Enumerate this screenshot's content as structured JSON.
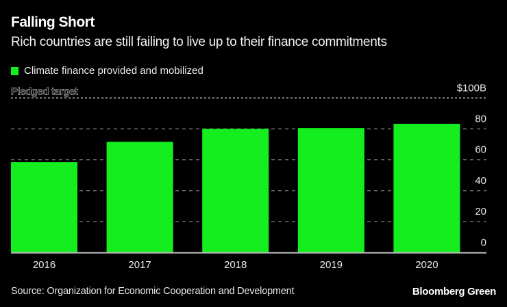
{
  "header": {
    "title": "Falling Short",
    "subtitle": "Rich countries are still failing to live up to their finance commitments"
  },
  "footer": {
    "source": "Source: Organization for Economic Cooperation and Development",
    "brand": "Bloomberg Green"
  },
  "chart_data": {
    "type": "bar",
    "title": "Falling Short",
    "subtitle": "Rich countries are still failing to live up to their finance commitments",
    "categories": [
      "2016",
      "2017",
      "2018",
      "2019",
      "2020"
    ],
    "series": [
      {
        "name": "Climate finance provided and mobilized",
        "color": "#14ee1e",
        "values": [
          58.5,
          71.6,
          80.0,
          80.6,
          83.3
        ]
      }
    ],
    "reference_line": {
      "label": "Pledged target",
      "value": 100
    },
    "yaxis": {
      "position": "right",
      "ticks": [
        0,
        20,
        40,
        60,
        80,
        100
      ],
      "tick_labels": [
        "0",
        "20",
        "40",
        "60",
        "80",
        "$100B"
      ],
      "ylim": [
        0,
        100
      ]
    },
    "xlabel": "",
    "ylabel": "",
    "grid": true,
    "legend": "top-left"
  }
}
